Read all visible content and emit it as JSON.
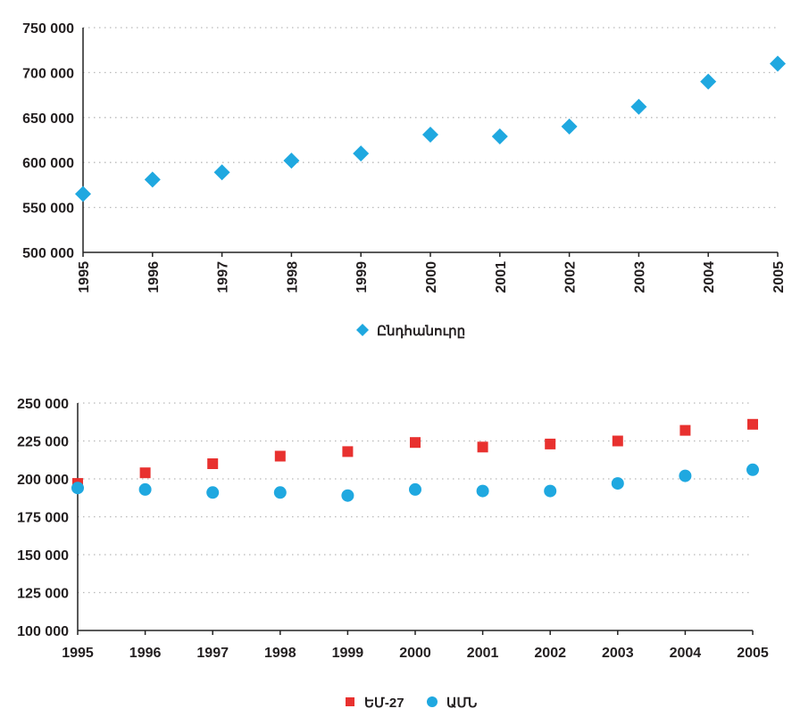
{
  "chart_data": [
    {
      "type": "scatter",
      "title": "",
      "xlabel": "",
      "ylabel": "",
      "x": [
        "1995",
        "1996",
        "1997",
        "1998",
        "1999",
        "2000",
        "2001",
        "2002",
        "2003",
        "2004",
        "2005"
      ],
      "ylim": [
        500000,
        750000
      ],
      "yticks": [
        500000,
        550000,
        600000,
        650000,
        700000,
        750000
      ],
      "ytick_labels": [
        "500 000",
        "550 000",
        "600 000",
        "650 000",
        "700 000",
        "750 000"
      ],
      "grid": true,
      "legend_position": "bottom",
      "series": [
        {
          "name": "Ընդհանուրը",
          "marker": "diamond",
          "color": "#1fa8e0",
          "values": [
            565000,
            581000,
            589000,
            602000,
            610000,
            631000,
            629000,
            640000,
            662000,
            690000,
            710000
          ]
        }
      ]
    },
    {
      "type": "scatter",
      "title": "",
      "xlabel": "",
      "ylabel": "",
      "x": [
        "1995",
        "1996",
        "1997",
        "1998",
        "1999",
        "2000",
        "2001",
        "2002",
        "2003",
        "2004",
        "2005"
      ],
      "ylim": [
        100000,
        250000
      ],
      "yticks": [
        100000,
        125000,
        150000,
        175000,
        200000,
        225000,
        250000
      ],
      "ytick_labels": [
        "100 000",
        "125 000",
        "150 000",
        "175 000",
        "200 000",
        "225 000",
        "250 000"
      ],
      "grid": true,
      "legend_position": "bottom",
      "series": [
        {
          "name": "ԵՄ-27",
          "marker": "square",
          "color": "#e8312f",
          "values": [
            197000,
            204000,
            210000,
            215000,
            218000,
            224000,
            221000,
            223000,
            225000,
            232000,
            236000
          ]
        },
        {
          "name": "ԱՄՆ",
          "marker": "circle",
          "color": "#1fa8e0",
          "values": [
            194000,
            193000,
            191000,
            191000,
            189000,
            193000,
            192000,
            192000,
            197000,
            202000,
            206000
          ]
        }
      ]
    }
  ]
}
